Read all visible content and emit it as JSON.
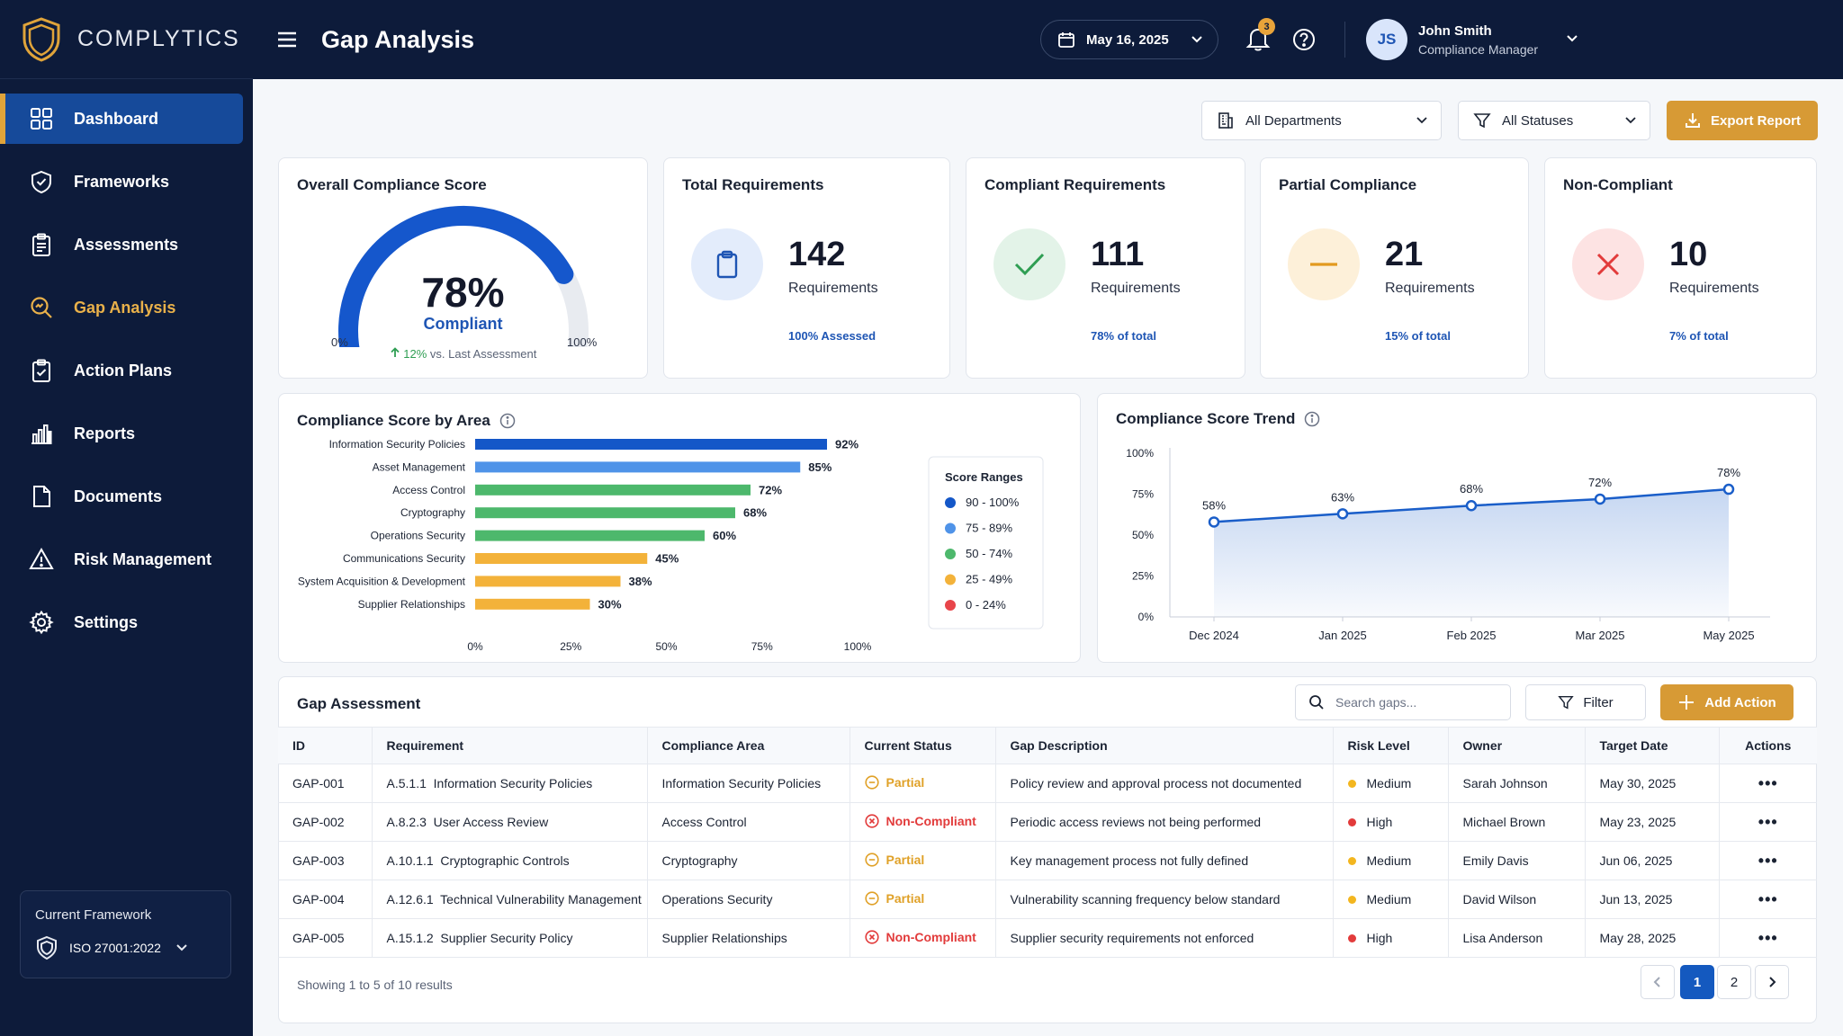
{
  "app": {
    "name": "COMPLYTICS"
  },
  "sidebar": {
    "items": [
      {
        "label": "Dashboard",
        "icon": "dashboard-icon"
      },
      {
        "label": "Frameworks",
        "icon": "shield-check-icon"
      },
      {
        "label": "Assessments",
        "icon": "clipboard-icon"
      },
      {
        "label": "Gap Analysis",
        "icon": "search-analysis-icon"
      },
      {
        "label": "Action Plans",
        "icon": "clipboard-check-icon"
      },
      {
        "label": "Reports",
        "icon": "bar-chart-icon"
      },
      {
        "label": "Documents",
        "icon": "document-icon"
      },
      {
        "label": "Risk Management",
        "icon": "warning-icon"
      },
      {
        "label": "Settings",
        "icon": "gear-icon"
      }
    ],
    "framework": {
      "title": "Current Framework",
      "value": "ISO 27001:2022"
    }
  },
  "header": {
    "title": "Gap Analysis",
    "date": "May 16, 2025",
    "notification_count": "3",
    "user": {
      "initials": "JS",
      "name": "John Smith",
      "role": "Compliance Manager"
    }
  },
  "toolbar": {
    "departments": "All Departments",
    "statuses": "All Statuses",
    "export_label": "Export Report"
  },
  "score_card": {
    "title": "Overall Compliance Score",
    "percent_text": "78%",
    "percent": 78,
    "status": "Compliant",
    "min": "0%",
    "max": "100%",
    "trend_value": "12%",
    "trend_text": "vs. Last Assessment"
  },
  "stats": [
    {
      "title": "Total Requirements",
      "value": "142",
      "label": "Requirements",
      "sub": "100% Assessed",
      "icon": "clipboard-icon",
      "bg": "#e3ecfb",
      "fg": "#1e55b4"
    },
    {
      "title": "Compliant Requirements",
      "value": "111",
      "label": "Requirements",
      "sub": "78% of total",
      "icon": "check-icon",
      "bg": "#e3f3e8",
      "fg": "#2f9e53"
    },
    {
      "title": "Partial Compliance",
      "value": "21",
      "label": "Requirements",
      "sub": "15% of total",
      "icon": "minus-icon",
      "bg": "#fdf0d9",
      "fg": "#e29a1f"
    },
    {
      "title": "Non-Compliant",
      "value": "10",
      "label": "Requirements",
      "sub": "7% of total",
      "icon": "x-icon",
      "bg": "#fde3e3",
      "fg": "#e23b3b"
    }
  ],
  "area_chart": {
    "title": "Compliance Score by Area",
    "chart_data": {
      "type": "bar",
      "orientation": "horizontal",
      "categories": [
        "Information Security Policies",
        "Asset Management",
        "Access Control",
        "Cryptography",
        "Operations Security",
        "Communications Security",
        "System Acquisition & Development",
        "Supplier Relationships"
      ],
      "values": [
        92,
        85,
        72,
        68,
        60,
        45,
        38,
        30
      ],
      "value_labels": [
        "92%",
        "85%",
        "72%",
        "68%",
        "60%",
        "45%",
        "38%",
        "30%"
      ],
      "xlim": [
        0,
        100
      ],
      "xticks": [
        "0%",
        "25%",
        "50%",
        "75%",
        "100%"
      ],
      "legend": {
        "title": "Score Ranges",
        "position": "right",
        "items": [
          {
            "label": "90 - 100%",
            "color": "#1457c8"
          },
          {
            "label": "75 - 89%",
            "color": "#4f93e8"
          },
          {
            "label": "50 - 74%",
            "color": "#4db86c"
          },
          {
            "label": "25 - 49%",
            "color": "#f3b23a"
          },
          {
            "label": "0 - 24%",
            "color": "#e8454a"
          }
        ]
      }
    }
  },
  "trend_chart": {
    "title": "Compliance Score Trend",
    "chart_data": {
      "type": "line",
      "x": [
        "Dec 2024",
        "Jan 2025",
        "Feb 2025",
        "Mar 2025",
        "May 2025"
      ],
      "values": [
        58,
        63,
        68,
        72,
        78
      ],
      "value_labels": [
        "58%",
        "63%",
        "68%",
        "72%",
        "78%"
      ],
      "ylim": [
        0,
        100
      ],
      "yticks": [
        "0%",
        "25%",
        "50%",
        "75%",
        "100%"
      ],
      "color": "#1a5ec9"
    }
  },
  "gap_table": {
    "title": "Gap Assessment",
    "search_placeholder": "Search gaps...",
    "filter_label": "Filter",
    "add_label": "Add Action",
    "columns": [
      "ID",
      "Requirement",
      "Compliance Area",
      "Current Status",
      "Gap Description",
      "Risk Level",
      "Owner",
      "Target Date",
      "Actions"
    ],
    "rows": [
      {
        "id": "GAP-001",
        "req": "A.5.1.1  Information Security Policies",
        "area": "Information Security Policies",
        "status": "Partial",
        "status_type": "partial",
        "desc": "Policy review and approval process not documented",
        "risk": "Medium",
        "risk_color": "#f3b61f",
        "owner": "Sarah Johnson",
        "date": "May 30, 2025"
      },
      {
        "id": "GAP-002",
        "req": "A.8.2.3  User Access Review",
        "area": "Access Control",
        "status": "Non-Compliant",
        "status_type": "non",
        "desc": "Periodic access reviews not being performed",
        "risk": "High",
        "risk_color": "#e23b3b",
        "owner": "Michael Brown",
        "date": "May 23, 2025"
      },
      {
        "id": "GAP-003",
        "req": "A.10.1.1  Cryptographic Controls",
        "area": "Cryptography",
        "status": "Partial",
        "status_type": "partial",
        "desc": "Key management process not fully defined",
        "risk": "Medium",
        "risk_color": "#f3b61f",
        "owner": "Emily Davis",
        "date": "Jun 06, 2025"
      },
      {
        "id": "GAP-004",
        "req": "A.12.6.1  Technical Vulnerability Management",
        "area": "Operations Security",
        "status": "Partial",
        "status_type": "partial",
        "desc": "Vulnerability scanning frequency below standard",
        "risk": "Medium",
        "risk_color": "#f3b61f",
        "owner": "David Wilson",
        "date": "Jun 13, 2025"
      },
      {
        "id": "GAP-005",
        "req": "A.15.1.2  Supplier Security Policy",
        "area": "Supplier Relationships",
        "status": "Non-Compliant",
        "status_type": "non",
        "desc": "Supplier security requirements not enforced",
        "risk": "High",
        "risk_color": "#e23b3b",
        "owner": "Lisa Anderson",
        "date": "May 28, 2025"
      }
    ],
    "showing": "Showing 1 to 5 of 10 results",
    "pages": [
      "1",
      "2"
    ]
  }
}
